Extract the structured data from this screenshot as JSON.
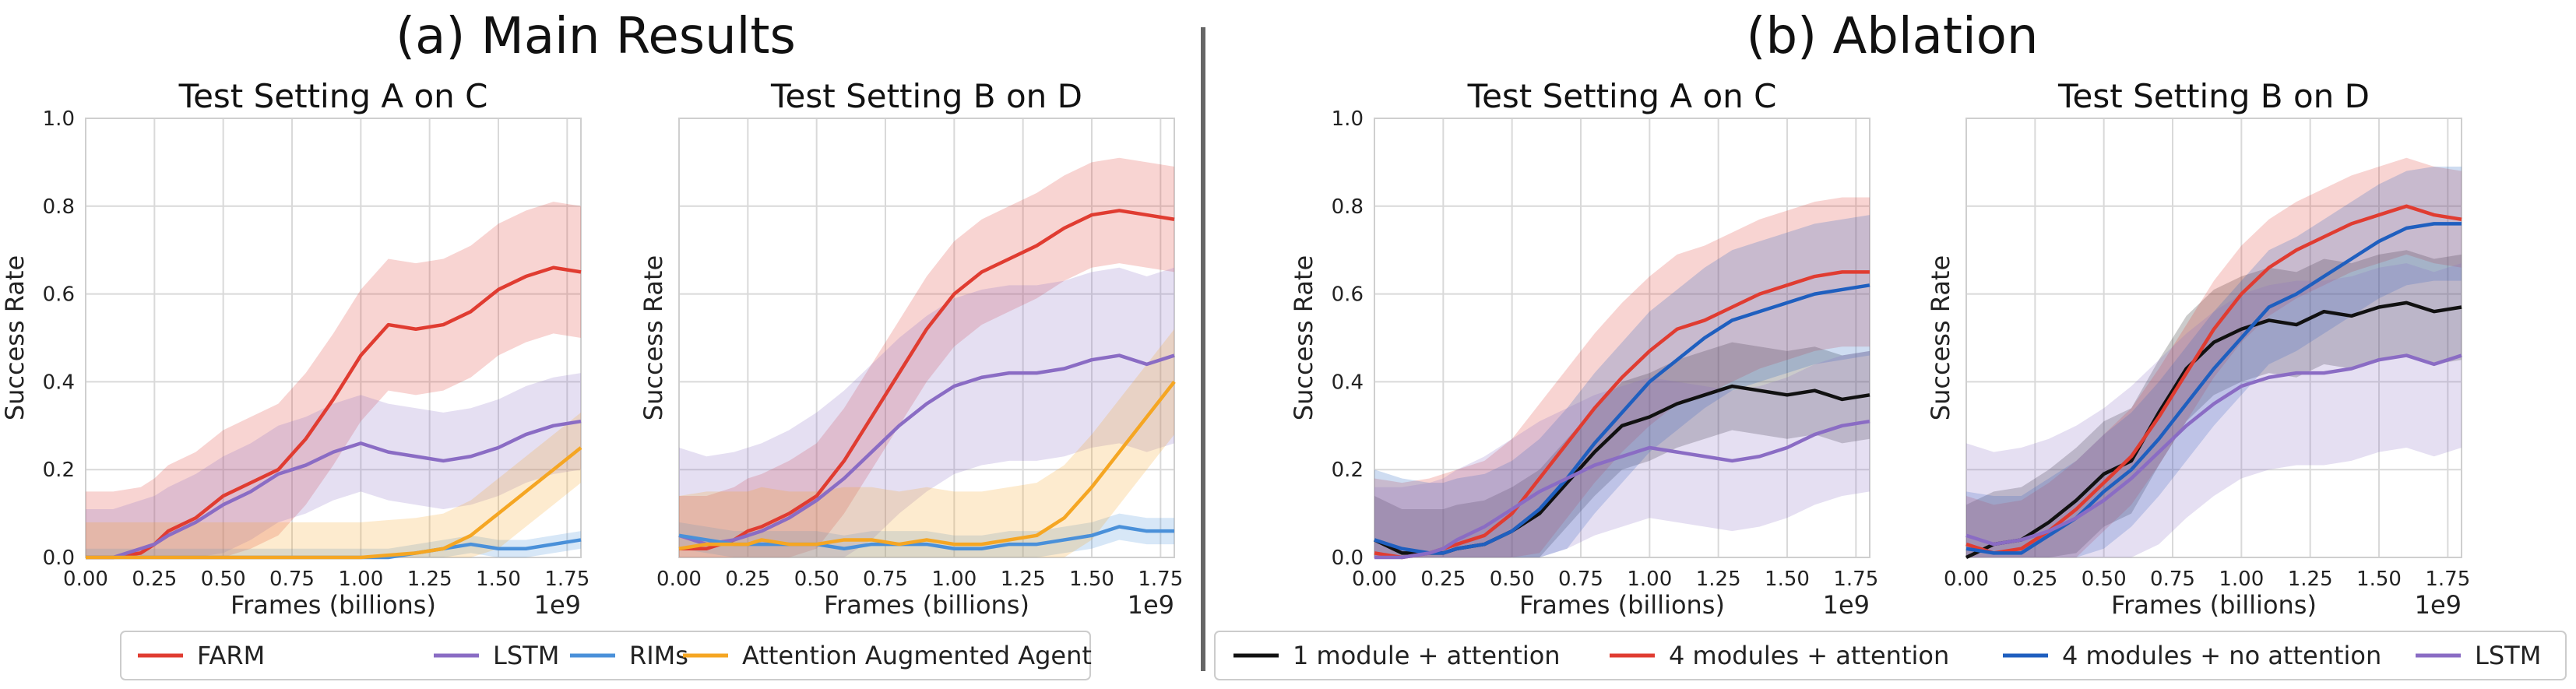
{
  "sections": [
    {
      "title": "(a) Main Results",
      "legend": [
        "FARM",
        "LSTM",
        "RIMs",
        "Attention Augmented Agent"
      ]
    },
    {
      "title": "(b) Ablation",
      "legend": [
        "1 module + attention",
        "4 modules + attention",
        "4 modules + no attention",
        "LSTM"
      ]
    }
  ],
  "colors": {
    "FARM": "#e03c31",
    "LSTM": "#8a6cc4",
    "RIMs": "#4a90d9",
    "Attention Augmented Agent": "#f5a623",
    "1 module + attention": "#111111",
    "4 modules + attention": "#e03c31",
    "4 modules + no attention": "#1f5fbf"
  },
  "chart_data": [
    {
      "type": "line",
      "section": 0,
      "title": "Test Setting A on C",
      "xlabel": "Frames (billions)",
      "ylabel": "Success Rate",
      "x_scale_label": "1e9",
      "xlim": [
        0,
        1.8
      ],
      "ylim": [
        0,
        1.0
      ],
      "xticks": [
        "0.00",
        "0.25",
        "0.50",
        "0.75",
        "1.00",
        "1.25",
        "1.50",
        "1.75"
      ],
      "yticks": [
        "0.0",
        "0.2",
        "0.4",
        "0.6",
        "0.8",
        "1.0"
      ],
      "show_yticklabels": true,
      "x": [
        0,
        0.1,
        0.2,
        0.25,
        0.3,
        0.4,
        0.5,
        0.6,
        0.7,
        0.8,
        0.9,
        1.0,
        1.1,
        1.2,
        1.3,
        1.4,
        1.5,
        1.6,
        1.7,
        1.8
      ],
      "series": [
        {
          "name": "FARM",
          "values": [
            0,
            0,
            0.01,
            0.03,
            0.06,
            0.09,
            0.14,
            0.17,
            0.2,
            0.27,
            0.36,
            0.46,
            0.53,
            0.52,
            0.53,
            0.56,
            0.61,
            0.64,
            0.66,
            0.65
          ],
          "band": 0.15
        },
        {
          "name": "LSTM",
          "values": [
            0,
            0,
            0.02,
            0.03,
            0.05,
            0.08,
            0.12,
            0.15,
            0.19,
            0.21,
            0.24,
            0.26,
            0.24,
            0.23,
            0.22,
            0.23,
            0.25,
            0.28,
            0.3,
            0.31
          ],
          "band": 0.11
        },
        {
          "name": "RIMs",
          "values": [
            0,
            0,
            0,
            0,
            0,
            0,
            0,
            0,
            0,
            0,
            0,
            0,
            0,
            0.01,
            0.02,
            0.03,
            0.02,
            0.02,
            0.03,
            0.04
          ],
          "band": 0.02
        },
        {
          "name": "Attention Augmented Agent",
          "values": [
            0,
            0,
            0,
            0,
            0,
            0,
            0,
            0,
            0,
            0,
            0,
            0,
            0.005,
            0.01,
            0.02,
            0.05,
            0.1,
            0.15,
            0.2,
            0.25
          ],
          "band": 0.08
        }
      ]
    },
    {
      "type": "line",
      "section": 0,
      "title": "Test Setting B on D",
      "xlabel": "Frames (billions)",
      "ylabel": "Success Rate",
      "x_scale_label": "1e9",
      "xlim": [
        0,
        1.8
      ],
      "ylim": [
        0,
        1.0
      ],
      "xticks": [
        "0.00",
        "0.25",
        "0.50",
        "0.75",
        "1.00",
        "1.25",
        "1.50",
        "1.75"
      ],
      "yticks": [
        "0.0",
        "0.2",
        "0.4",
        "0.6",
        "0.8",
        "1.0"
      ],
      "show_yticklabels": false,
      "x": [
        0,
        0.1,
        0.2,
        0.25,
        0.3,
        0.4,
        0.5,
        0.6,
        0.7,
        0.8,
        0.9,
        1.0,
        1.1,
        1.2,
        1.3,
        1.4,
        1.5,
        1.6,
        1.7,
        1.8
      ],
      "series": [
        {
          "name": "FARM",
          "values": [
            0.02,
            0.02,
            0.04,
            0.06,
            0.07,
            0.1,
            0.14,
            0.22,
            0.32,
            0.42,
            0.52,
            0.6,
            0.65,
            0.68,
            0.71,
            0.75,
            0.78,
            0.79,
            0.78,
            0.77
          ],
          "band": 0.12
        },
        {
          "name": "LSTM",
          "values": [
            0.05,
            0.03,
            0.04,
            0.05,
            0.06,
            0.09,
            0.13,
            0.18,
            0.24,
            0.3,
            0.35,
            0.39,
            0.41,
            0.42,
            0.42,
            0.43,
            0.45,
            0.46,
            0.44,
            0.46
          ],
          "band": 0.2
        },
        {
          "name": "RIMs",
          "values": [
            0.05,
            0.04,
            0.03,
            0.03,
            0.03,
            0.03,
            0.03,
            0.02,
            0.03,
            0.03,
            0.03,
            0.02,
            0.02,
            0.03,
            0.03,
            0.04,
            0.05,
            0.07,
            0.06,
            0.06
          ],
          "band": 0.03
        },
        {
          "name": "Attention Augmented Agent",
          "values": [
            0.02,
            0.03,
            0.03,
            0.03,
            0.04,
            0.03,
            0.03,
            0.04,
            0.04,
            0.03,
            0.04,
            0.03,
            0.03,
            0.04,
            0.05,
            0.09,
            0.16,
            0.24,
            0.32,
            0.4
          ],
          "band": 0.12
        }
      ]
    },
    {
      "type": "line",
      "section": 1,
      "title": "Test Setting A on C",
      "xlabel": "Frames (billions)",
      "ylabel": "Success Rate",
      "x_scale_label": "1e9",
      "xlim": [
        0,
        1.8
      ],
      "ylim": [
        0,
        1.0
      ],
      "xticks": [
        "0.00",
        "0.25",
        "0.50",
        "0.75",
        "1.00",
        "1.25",
        "1.50",
        "1.75"
      ],
      "yticks": [
        "0.0",
        "0.2",
        "0.4",
        "0.6",
        "0.8",
        "1.0"
      ],
      "show_yticklabels": true,
      "x": [
        0,
        0.1,
        0.2,
        0.25,
        0.3,
        0.4,
        0.5,
        0.6,
        0.7,
        0.8,
        0.9,
        1.0,
        1.1,
        1.2,
        1.3,
        1.4,
        1.5,
        1.6,
        1.7,
        1.8
      ],
      "series": [
        {
          "name": "1 module + attention",
          "values": [
            0.04,
            0.01,
            0.01,
            0.01,
            0.02,
            0.03,
            0.06,
            0.1,
            0.17,
            0.24,
            0.3,
            0.32,
            0.35,
            0.37,
            0.39,
            0.38,
            0.37,
            0.38,
            0.36,
            0.37
          ],
          "band": 0.1
        },
        {
          "name": "4 modules + attention",
          "values": [
            0.01,
            0,
            0.01,
            0.02,
            0.03,
            0.05,
            0.1,
            0.18,
            0.26,
            0.34,
            0.41,
            0.47,
            0.52,
            0.54,
            0.57,
            0.6,
            0.62,
            0.64,
            0.65,
            0.65
          ],
          "band": 0.17
        },
        {
          "name": "4 modules + no attention",
          "values": [
            0.04,
            0.02,
            0.01,
            0.01,
            0.02,
            0.03,
            0.06,
            0.11,
            0.18,
            0.26,
            0.33,
            0.4,
            0.45,
            0.5,
            0.54,
            0.56,
            0.58,
            0.6,
            0.61,
            0.62
          ],
          "band": 0.16
        },
        {
          "name": "LSTM",
          "values": [
            0,
            0,
            0.01,
            0.02,
            0.04,
            0.07,
            0.11,
            0.15,
            0.18,
            0.21,
            0.23,
            0.25,
            0.24,
            0.23,
            0.22,
            0.23,
            0.25,
            0.28,
            0.3,
            0.31
          ],
          "band": 0.16
        }
      ]
    },
    {
      "type": "line",
      "section": 1,
      "title": "Test Setting B on D",
      "xlabel": "Frames (billions)",
      "ylabel": "Success Rate",
      "x_scale_label": "1e9",
      "xlim": [
        0,
        1.8
      ],
      "ylim": [
        0,
        1.0
      ],
      "xticks": [
        "0.00",
        "0.25",
        "0.50",
        "0.75",
        "1.00",
        "1.25",
        "1.50",
        "1.75"
      ],
      "yticks": [
        "0.0",
        "0.2",
        "0.4",
        "0.6",
        "0.8",
        "1.0"
      ],
      "show_yticklabels": false,
      "x": [
        0,
        0.1,
        0.2,
        0.25,
        0.3,
        0.4,
        0.5,
        0.6,
        0.7,
        0.8,
        0.9,
        1.0,
        1.1,
        1.2,
        1.3,
        1.4,
        1.5,
        1.6,
        1.7,
        1.8
      ],
      "series": [
        {
          "name": "1 module + attention",
          "values": [
            0,
            0.03,
            0.04,
            0.06,
            0.08,
            0.13,
            0.19,
            0.22,
            0.33,
            0.43,
            0.49,
            0.52,
            0.54,
            0.53,
            0.56,
            0.55,
            0.57,
            0.58,
            0.56,
            0.57
          ],
          "band": 0.12
        },
        {
          "name": "4 modules + attention",
          "values": [
            0.03,
            0.01,
            0.02,
            0.04,
            0.06,
            0.11,
            0.17,
            0.23,
            0.32,
            0.42,
            0.52,
            0.6,
            0.66,
            0.7,
            0.73,
            0.76,
            0.78,
            0.8,
            0.78,
            0.77
          ],
          "band": 0.11
        },
        {
          "name": "4 modules + no attention",
          "values": [
            0.02,
            0.01,
            0.01,
            0.03,
            0.05,
            0.09,
            0.15,
            0.2,
            0.27,
            0.35,
            0.43,
            0.5,
            0.57,
            0.6,
            0.64,
            0.68,
            0.72,
            0.75,
            0.76,
            0.76
          ],
          "band": 0.13
        },
        {
          "name": "LSTM",
          "values": [
            0.05,
            0.03,
            0.04,
            0.05,
            0.06,
            0.09,
            0.13,
            0.18,
            0.24,
            0.3,
            0.35,
            0.39,
            0.41,
            0.42,
            0.42,
            0.43,
            0.45,
            0.46,
            0.44,
            0.46
          ],
          "band": 0.21
        }
      ]
    }
  ]
}
